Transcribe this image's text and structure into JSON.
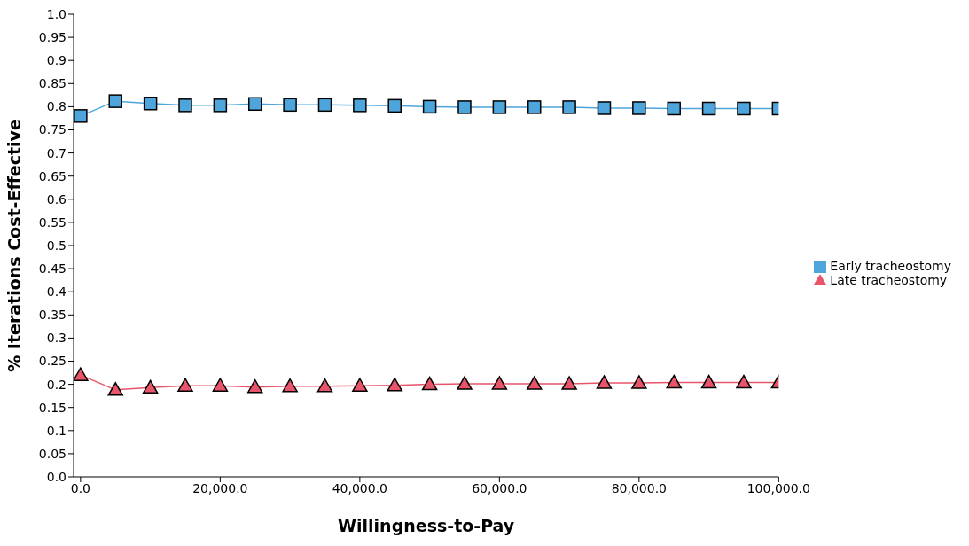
{
  "chart_data": {
    "type": "line",
    "xlabel": "Willingness-to-Pay",
    "ylabel": "% Iterations Cost-Effective",
    "x": [
      0,
      5000,
      10000,
      15000,
      20000,
      25000,
      30000,
      35000,
      40000,
      45000,
      50000,
      55000,
      60000,
      65000,
      70000,
      75000,
      80000,
      85000,
      90000,
      95000,
      100000
    ],
    "series": [
      {
        "name": "Early tracheostomy",
        "color": "#4ea5dc",
        "marker": "square",
        "values": [
          0.78,
          0.812,
          0.807,
          0.803,
          0.803,
          0.806,
          0.804,
          0.804,
          0.803,
          0.802,
          0.8,
          0.799,
          0.799,
          0.799,
          0.799,
          0.797,
          0.797,
          0.796,
          0.796,
          0.796,
          0.796
        ]
      },
      {
        "name": "Late tracheostomy",
        "color": "#e8546a",
        "marker": "triangle",
        "values": [
          0.22,
          0.188,
          0.193,
          0.197,
          0.197,
          0.194,
          0.196,
          0.196,
          0.197,
          0.198,
          0.2,
          0.201,
          0.201,
          0.201,
          0.201,
          0.203,
          0.203,
          0.204,
          0.204,
          0.204,
          0.204
        ]
      }
    ],
    "xlim": [
      -1000,
      100000
    ],
    "xticks": [
      {
        "value": 0,
        "label": "0.0"
      },
      {
        "value": 20000,
        "label": "20,000.0"
      },
      {
        "value": 40000,
        "label": "40,000.0"
      },
      {
        "value": 60000,
        "label": "60,000.0"
      },
      {
        "value": 80000,
        "label": "80,000.0"
      },
      {
        "value": 100000,
        "label": "100,000.0"
      }
    ],
    "ylim": [
      0,
      1
    ],
    "yticks": [
      {
        "value": 0,
        "label": "0.0"
      },
      0.05,
      0.1,
      0.15,
      0.2,
      0.25,
      0.3,
      0.35,
      0.4,
      0.45,
      0.5,
      0.55,
      0.6,
      0.65,
      0.7,
      0.75,
      0.8,
      0.85,
      0.9,
      0.95,
      {
        "value": 1,
        "label": "1.0"
      }
    ],
    "grid": false,
    "legend": "right",
    "line_style": "solid"
  }
}
